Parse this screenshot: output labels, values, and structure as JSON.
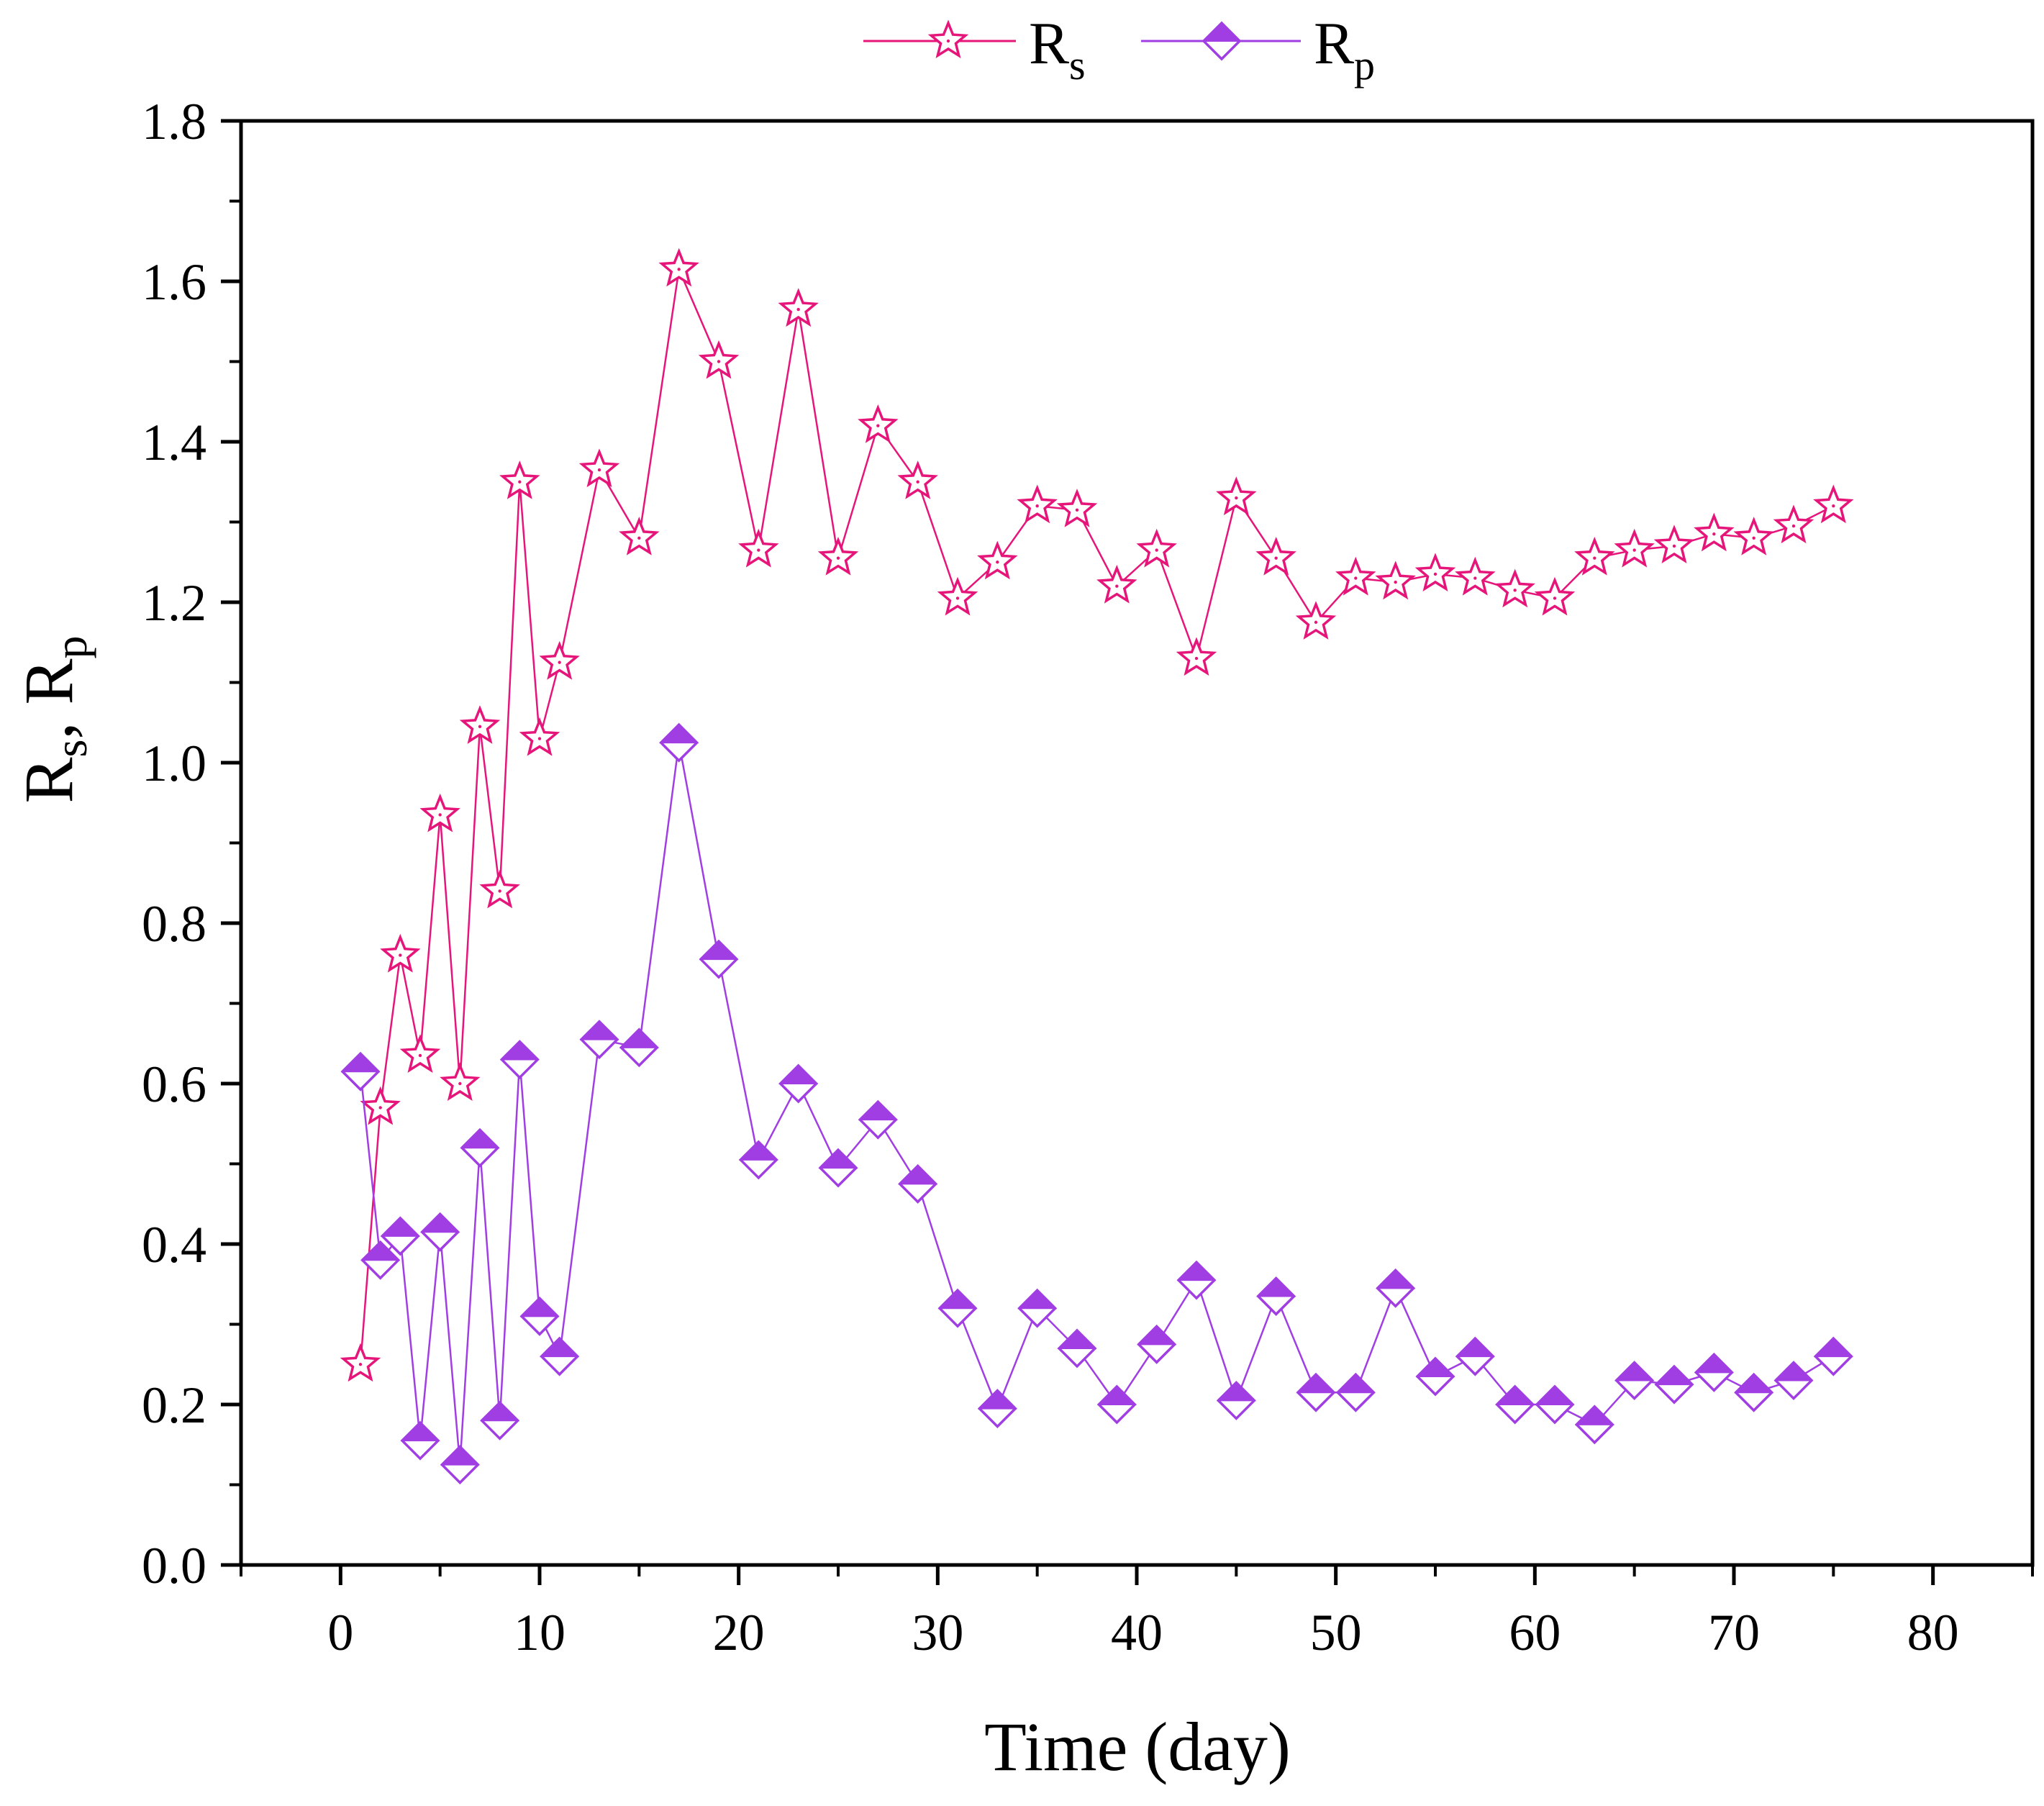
{
  "chart_data": {
    "type": "line",
    "title": "",
    "xlabel": "Time (day)",
    "ylabel": "R_s, R_p",
    "xlim": [
      -5,
      85
    ],
    "ylim": [
      0.0,
      1.8
    ],
    "x_ticks": [
      "0",
      "10",
      "20",
      "30",
      "40",
      "50",
      "60",
      "70",
      "80"
    ],
    "y_ticks": [
      "0.0",
      "0.2",
      "0.4",
      "0.6",
      "0.8",
      "1.0",
      "1.2",
      "1.4",
      "1.6",
      "1.8"
    ],
    "grid": false,
    "legend_position": "top-center",
    "series": [
      {
        "name": "Rs",
        "label_main": "R",
        "label_sub": "s",
        "color": "#e6157a",
        "marker": "star",
        "x": [
          1,
          2,
          3,
          4,
          5,
          6,
          7,
          8,
          9,
          10,
          11,
          13,
          15,
          17,
          19,
          21,
          23,
          25,
          27,
          29,
          31,
          33,
          35,
          37,
          39,
          41,
          43,
          45,
          47,
          49,
          51,
          53,
          55,
          57,
          59,
          61,
          63,
          65,
          67,
          69,
          71,
          73,
          75
        ],
        "values": [
          0.25,
          0.57,
          0.76,
          0.635,
          0.935,
          0.6,
          1.045,
          0.84,
          1.35,
          1.03,
          1.125,
          1.365,
          1.28,
          1.615,
          1.5,
          1.265,
          1.565,
          1.255,
          1.42,
          1.35,
          1.205,
          1.25,
          1.32,
          1.315,
          1.22,
          1.265,
          1.13,
          1.33,
          1.255,
          1.175,
          1.23,
          1.225,
          1.235,
          1.23,
          1.215,
          1.205,
          1.255,
          1.265,
          1.27,
          1.285,
          1.28,
          1.295,
          1.32
        ]
      },
      {
        "name": "Rp",
        "label_main": "R",
        "label_sub": "p",
        "color": "#a03ee3",
        "marker": "half-filled-diamond",
        "x": [
          1,
          2,
          3,
          4,
          5,
          6,
          7,
          8,
          9,
          10,
          11,
          13,
          15,
          17,
          19,
          21,
          23,
          25,
          27,
          29,
          31,
          33,
          35,
          37,
          39,
          41,
          43,
          45,
          47,
          49,
          51,
          53,
          55,
          57,
          59,
          61,
          63,
          65,
          67,
          69,
          71,
          73,
          75
        ],
        "values": [
          0.615,
          0.38,
          0.41,
          0.155,
          0.415,
          0.125,
          0.52,
          0.18,
          0.63,
          0.31,
          0.26,
          0.655,
          0.645,
          1.025,
          0.755,
          0.505,
          0.6,
          0.495,
          0.555,
          0.475,
          0.32,
          0.195,
          0.32,
          0.27,
          0.2,
          0.275,
          0.355,
          0.205,
          0.335,
          0.215,
          0.215,
          0.345,
          0.235,
          0.26,
          0.2,
          0.2,
          0.175,
          0.23,
          0.225,
          0.24,
          0.215,
          0.23,
          0.26
        ]
      }
    ]
  }
}
